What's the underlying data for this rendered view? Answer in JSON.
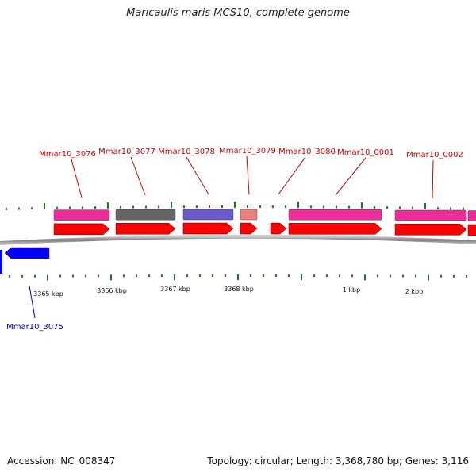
{
  "title": "Maricaulis maris MCS10, complete genome",
  "accession_text": "Accession: NC_008347",
  "topology_text": "Topology: circular; Length: 3,368,780 bp; Genes: 3,116",
  "colors": {
    "backbone": "#8a8a8a",
    "tick": "#1a7a1a",
    "label_forward": "#cc0000",
    "label_reverse": "#0000cc",
    "cds_forward": "#ff0000",
    "cds_reverse": "#0000ff",
    "feature_pink": "#ee2d9a",
    "feature_gray": "#666666",
    "feature_violet": "#6a5acd",
    "feature_salmon": "#f08080"
  },
  "scale_labels": [
    "3365 kbp",
    "3366 kbp",
    "3367 kbp",
    "3368 kbp",
    "1 kbp",
    "2 kbp"
  ],
  "genes": [
    {
      "name": "Mmar10_3076",
      "strand": "+"
    },
    {
      "name": "Mmar10_3077",
      "strand": "+"
    },
    {
      "name": "Mmar10_3078",
      "strand": "+"
    },
    {
      "name": "Mmar10_3079",
      "strand": "+"
    },
    {
      "name": "Mmar10_3080",
      "strand": "+"
    },
    {
      "name": "Mmar10_0001",
      "strand": "+"
    },
    {
      "name": "Mmar10_0002",
      "strand": "+"
    },
    {
      "name": "Mmar10_3075",
      "strand": "-"
    }
  ]
}
